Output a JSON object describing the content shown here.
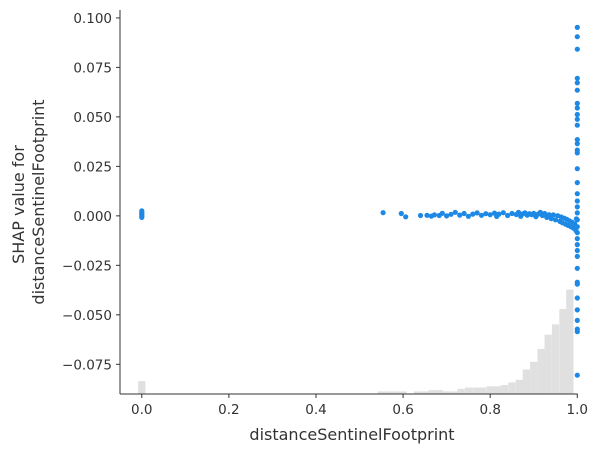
{
  "chart_data": {
    "type": "scatter",
    "xlabel": "distanceSentinelFootprint",
    "ylabel_lines": [
      "SHAP value for",
      "distanceSentinelFootprint"
    ],
    "xlim": [
      -0.05,
      1.02
    ],
    "ylim": [
      -0.09,
      0.104
    ],
    "x_ticks": [
      0.0,
      0.2,
      0.4,
      0.6,
      0.8,
      1.0
    ],
    "x_tick_labels": [
      "0.0",
      "0.2",
      "0.4",
      "0.6",
      "0.8",
      "1.0"
    ],
    "y_ticks": [
      0.1,
      0.075,
      0.05,
      0.025,
      0.0,
      -0.025,
      -0.05,
      -0.075
    ],
    "y_tick_labels": [
      "0.100",
      "0.075",
      "0.050",
      "0.025",
      "0.000",
      "−0.025",
      "−0.050",
      "−0.075"
    ],
    "point_color": "#1E88E5",
    "histogram_color": "#e0e0e0",
    "grid": false,
    "points": [
      [
        0.0,
        0.0025
      ],
      [
        0.0,
        0.0018
      ],
      [
        0.0,
        0.0012
      ],
      [
        0.0,
        0.0005
      ],
      [
        0.0,
        -0.0003
      ],
      [
        0.0,
        -0.0008
      ],
      [
        0.554,
        0.0016
      ],
      [
        0.596,
        0.0012
      ],
      [
        0.606,
        -0.0005
      ],
      [
        0.64,
        0.0002
      ],
      [
        0.655,
        0.0003
      ],
      [
        0.665,
        -0.0001
      ],
      [
        0.672,
        0.0005
      ],
      [
        0.683,
        0.0002
      ],
      [
        0.69,
        0.0013
      ],
      [
        0.7,
        0.0
      ],
      [
        0.71,
        0.0008
      ],
      [
        0.72,
        0.0018
      ],
      [
        0.73,
        0.0004
      ],
      [
        0.74,
        0.0012
      ],
      [
        0.75,
        -0.0002
      ],
      [
        0.76,
        0.0009
      ],
      [
        0.77,
        0.0015
      ],
      [
        0.78,
        0.0003
      ],
      [
        0.79,
        0.0011
      ],
      [
        0.8,
        0.0006
      ],
      [
        0.81,
        0.0014
      ],
      [
        0.815,
        -0.0003
      ],
      [
        0.82,
        0.0009
      ],
      [
        0.83,
        0.0016
      ],
      [
        0.84,
        0.0002
      ],
      [
        0.85,
        0.0012
      ],
      [
        0.86,
        0.0007
      ],
      [
        0.865,
        0.0018
      ],
      [
        0.87,
        -0.0002
      ],
      [
        0.875,
        0.001
      ],
      [
        0.88,
        0.0015
      ],
      [
        0.885,
        0.0004
      ],
      [
        0.89,
        0.0011
      ],
      [
        0.895,
        0.0006
      ],
      [
        0.9,
        0.0013
      ],
      [
        0.905,
        -0.0004
      ],
      [
        0.91,
        0.0009
      ],
      [
        0.915,
        0.0018
      ],
      [
        0.92,
        0.0002
      ],
      [
        0.925,
        0.0012
      ],
      [
        0.93,
        -0.0008
      ],
      [
        0.935,
        0.0006
      ],
      [
        0.94,
        -0.0014
      ],
      [
        0.945,
        0.0005
      ],
      [
        0.95,
        -0.002
      ],
      [
        0.955,
        0.0001
      ],
      [
        0.96,
        -0.0028
      ],
      [
        0.963,
        -0.0006
      ],
      [
        0.966,
        -0.0035
      ],
      [
        0.97,
        -0.0012
      ],
      [
        0.973,
        -0.0042
      ],
      [
        0.976,
        -0.0018
      ],
      [
        0.979,
        -0.0048
      ],
      [
        0.982,
        -0.0025
      ],
      [
        0.985,
        -0.0055
      ],
      [
        0.988,
        -0.0032
      ],
      [
        0.991,
        -0.0062
      ],
      [
        0.994,
        -0.004
      ],
      [
        0.997,
        -0.0075
      ],
      [
        0.998,
        -0.0015
      ],
      [
        1.0,
        0.0952
      ],
      [
        1.0,
        0.0905
      ],
      [
        1.0,
        0.0842
      ],
      [
        1.0,
        0.0695
      ],
      [
        1.0,
        0.0672
      ],
      [
        1.0,
        0.0635
      ],
      [
        1.0,
        0.0568
      ],
      [
        1.0,
        0.0545
      ],
      [
        1.0,
        0.0512
      ],
      [
        1.0,
        0.0488
      ],
      [
        1.0,
        0.0458
      ],
      [
        1.0,
        0.0385
      ],
      [
        1.0,
        0.0365
      ],
      [
        1.0,
        0.0332
      ],
      [
        1.0,
        0.0318
      ],
      [
        1.0,
        0.0238
      ],
      [
        1.0,
        0.0168
      ],
      [
        1.0,
        0.0112
      ],
      [
        1.0,
        0.0075
      ],
      [
        1.0,
        0.0045
      ],
      [
        1.0,
        0.0015
      ],
      [
        1.0,
        -0.002
      ],
      [
        1.0,
        -0.0055
      ],
      [
        1.0,
        -0.0085
      ],
      [
        1.0,
        -0.0115
      ],
      [
        1.0,
        -0.0145
      ],
      [
        1.0,
        -0.0175
      ],
      [
        1.0,
        -0.0205
      ],
      [
        1.0,
        -0.0265
      ],
      [
        1.0,
        -0.0335
      ],
      [
        1.0,
        -0.0345
      ],
      [
        1.0,
        -0.0415
      ],
      [
        1.0,
        -0.0475
      ],
      [
        1.0,
        -0.0528
      ],
      [
        1.0,
        -0.0572
      ],
      [
        1.0,
        -0.0585
      ],
      [
        1.0,
        -0.0805
      ]
    ],
    "histogram": {
      "bin_width": 0.0167,
      "bins": [
        [
          0.0,
          0.0335
        ],
        [
          0.55,
          0.0067
        ],
        [
          0.567,
          0.0067
        ],
        [
          0.583,
          0.0067
        ],
        [
          0.6,
          0.0067
        ],
        [
          0.633,
          0.0067
        ],
        [
          0.65,
          0.0067
        ],
        [
          0.667,
          0.0101
        ],
        [
          0.683,
          0.0101
        ],
        [
          0.7,
          0.0067
        ],
        [
          0.717,
          0.0067
        ],
        [
          0.733,
          0.0134
        ],
        [
          0.75,
          0.0168
        ],
        [
          0.767,
          0.0168
        ],
        [
          0.783,
          0.0168
        ],
        [
          0.8,
          0.0201
        ],
        [
          0.817,
          0.0201
        ],
        [
          0.833,
          0.0235
        ],
        [
          0.85,
          0.0302
        ],
        [
          0.867,
          0.0369
        ],
        [
          0.883,
          0.0637
        ],
        [
          0.9,
          0.0839
        ],
        [
          0.917,
          0.1174
        ],
        [
          0.933,
          0.1544
        ],
        [
          0.95,
          0.1812
        ],
        [
          0.967,
          0.2215
        ],
        [
          0.983,
          0.2718
        ]
      ]
    }
  }
}
